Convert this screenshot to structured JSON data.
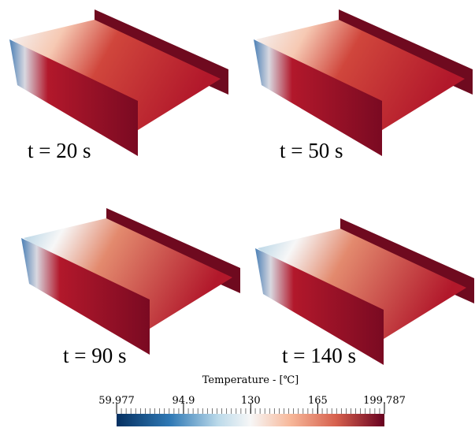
{
  "panels": [
    {
      "label": "t = 20 s"
    },
    {
      "label": "t = 50 s"
    },
    {
      "label": "t = 90 s"
    },
    {
      "label": "t = 140 s"
    }
  ],
  "colorbar": {
    "title": "Temperature - [℃]",
    "ticks": [
      59.977,
      94.9,
      130,
      165,
      199.787
    ]
  }
}
